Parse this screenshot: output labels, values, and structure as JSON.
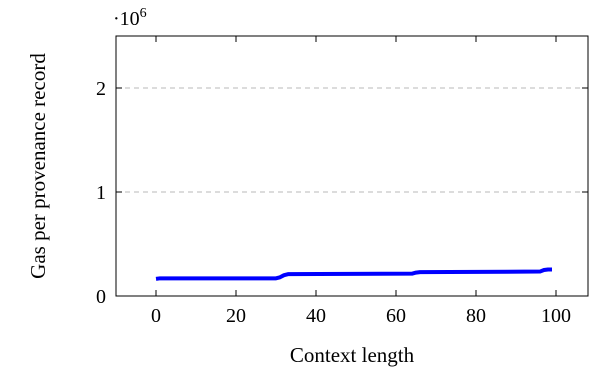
{
  "chart_data": {
    "type": "line",
    "title": "",
    "xlabel": "Context length",
    "ylabel": "Gas per provenance record",
    "y_scale_factor_base": "·10",
    "y_scale_factor_exp": "6",
    "xlim": [
      -10,
      108
    ],
    "ylim": [
      0,
      2.5
    ],
    "x_ticks": [
      0,
      20,
      40,
      60,
      80,
      100
    ],
    "y_ticks": [
      0,
      1,
      2
    ],
    "grid": "horizontal dashed at y ticks",
    "legend": "none",
    "series": [
      {
        "color": "#0000ff",
        "x": [
          0,
          1,
          30,
          31,
          32,
          33,
          64,
          65,
          66,
          96,
          97,
          98,
          99
        ],
        "y": [
          0.165,
          0.17,
          0.17,
          0.18,
          0.2,
          0.21,
          0.215,
          0.225,
          0.23,
          0.235,
          0.25,
          0.255,
          0.255
        ]
      }
    ]
  }
}
